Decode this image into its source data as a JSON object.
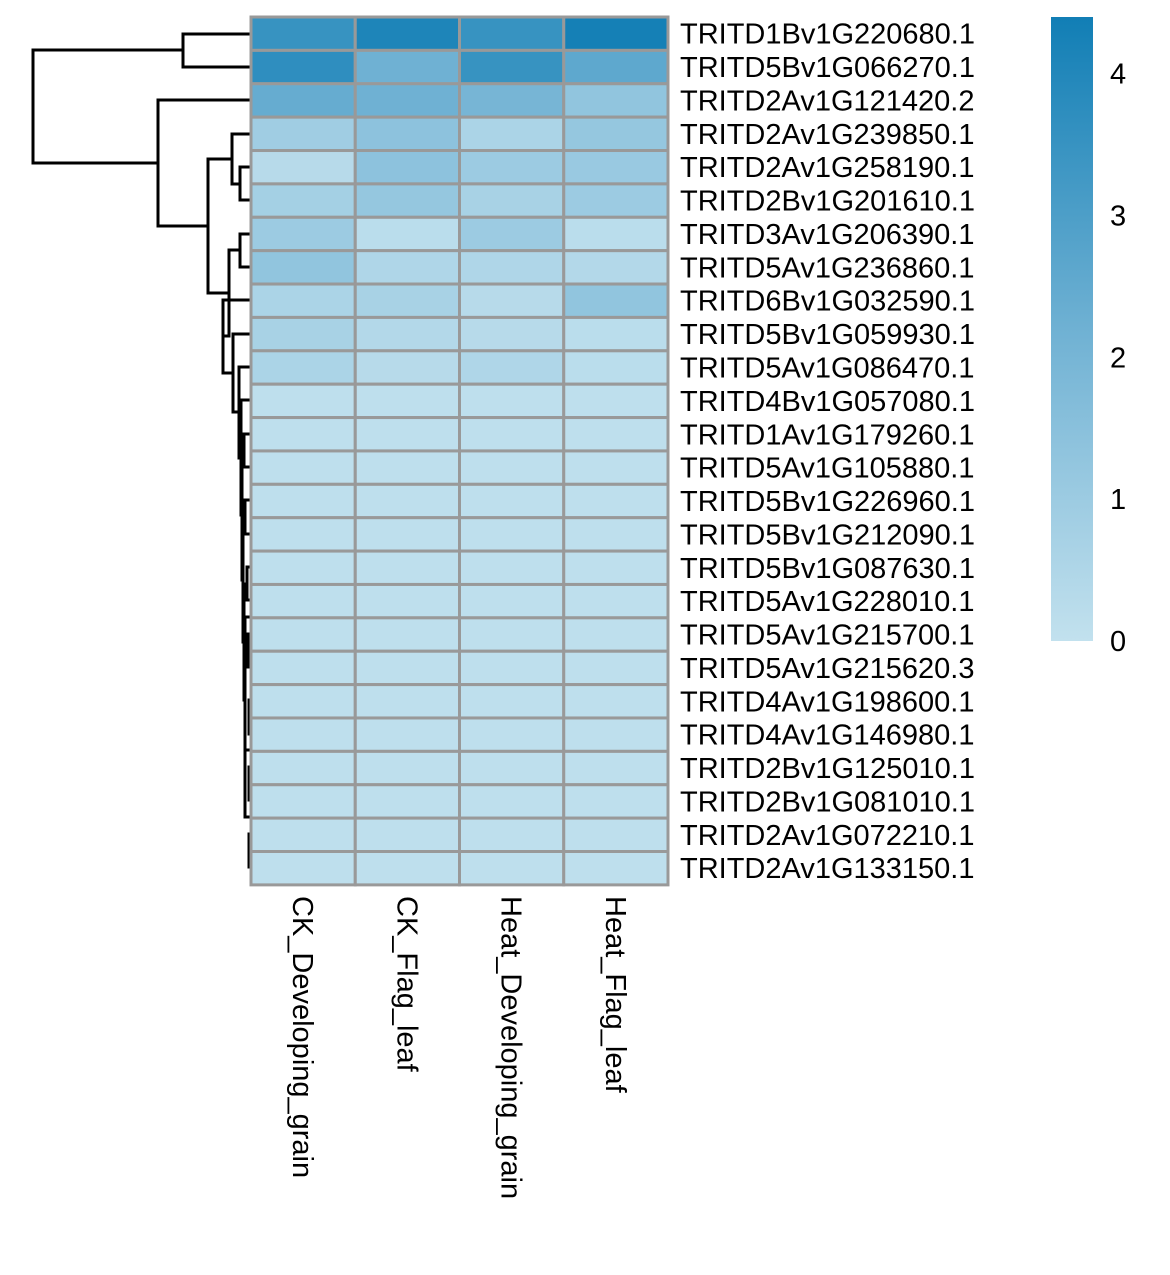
{
  "chart_data": {
    "type": "heatmap",
    "title": "",
    "columns": [
      "CK_Developing_grain",
      "CK_Flag_leaf",
      "Heat_Developing_grain",
      "Heat_Flag_leaf"
    ],
    "rows": [
      "TRITD1Bv1G220680.1",
      "TRITD5Bv1G066270.1",
      "TRITD2Av1G121420.2",
      "TRITD2Av1G239850.1",
      "TRITD2Av1G258190.1",
      "TRITD2Bv1G201610.1",
      "TRITD3Av1G206390.1",
      "TRITD5Av1G236860.1",
      "TRITD6Bv1G032590.1",
      "TRITD5Bv1G059930.1",
      "TRITD5Av1G086470.1",
      "TRITD4Bv1G057080.1",
      "TRITD1Av1G179260.1",
      "TRITD5Av1G105880.1",
      "TRITD5Bv1G226960.1",
      "TRITD5Bv1G212090.1",
      "TRITD5Bv1G087630.1",
      "TRITD5Av1G228010.1",
      "TRITD5Av1G215700.1",
      "TRITD5Av1G215620.3",
      "TRITD4Av1G198600.1",
      "TRITD4Av1G146980.1",
      "TRITD2Bv1G125010.1",
      "TRITD2Bv1G081010.1",
      "TRITD2Av1G072210.1",
      "TRITD2Av1G133150.1"
    ],
    "values": [
      [
        3.5,
        4.1,
        3.5,
        4.3
      ],
      [
        3.7,
        2.2,
        3.5,
        2.6
      ],
      [
        2.4,
        2.2,
        2.0,
        1.3
      ],
      [
        0.9,
        1.4,
        0.6,
        1.2
      ],
      [
        0.3,
        1.4,
        1.0,
        1.1
      ],
      [
        0.8,
        1.2,
        0.7,
        1.0
      ],
      [
        1.0,
        0.2,
        1.0,
        0.2
      ],
      [
        1.3,
        0.5,
        0.5,
        0.4
      ],
      [
        0.6,
        0.7,
        0.3,
        1.3
      ],
      [
        0.7,
        0.4,
        0.3,
        0.2
      ],
      [
        0.6,
        0.3,
        0.5,
        0.2
      ],
      [
        0.1,
        0.1,
        0.1,
        0.1
      ],
      [
        0.1,
        0.1,
        0.1,
        0.1
      ],
      [
        0.1,
        0.1,
        0.1,
        0.1
      ],
      [
        0.1,
        0.1,
        0.1,
        0.1
      ],
      [
        0.1,
        0.1,
        0.1,
        0.1
      ],
      [
        0.1,
        0.1,
        0.1,
        0.1
      ],
      [
        0.1,
        0.1,
        0.1,
        0.1
      ],
      [
        0.1,
        0.1,
        0.1,
        0.1
      ],
      [
        0.1,
        0.1,
        0.1,
        0.1
      ],
      [
        0.1,
        0.1,
        0.1,
        0.1
      ],
      [
        0.1,
        0.1,
        0.1,
        0.1
      ],
      [
        0.1,
        0.1,
        0.1,
        0.1
      ],
      [
        0.1,
        0.1,
        0.1,
        0.1
      ],
      [
        0.1,
        0.1,
        0.1,
        0.1
      ],
      [
        0.1,
        0.1,
        0.1,
        0.1
      ]
    ],
    "color_scale": {
      "low": "#c2e1ee",
      "mid": "#6fb1d3",
      "high": "#117eb5",
      "range": [
        0,
        4.4
      ],
      "ticks": [
        0,
        1,
        2,
        3,
        4
      ]
    },
    "cell_border_color": "#999999",
    "row_dendrogram": true,
    "legend_position": "right"
  }
}
